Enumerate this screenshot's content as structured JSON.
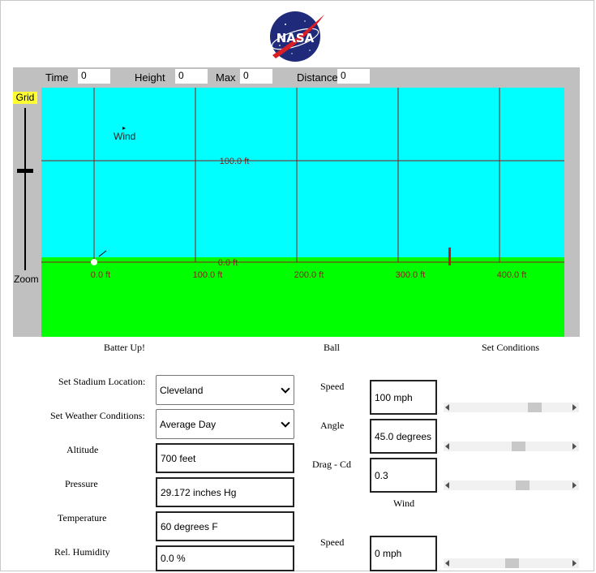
{
  "logo": {
    "text": "NASA",
    "colors": {
      "globe": "#1f2a7a",
      "swoosh": "#d81f26"
    }
  },
  "readouts": [
    {
      "label": "Time",
      "value": "0"
    },
    {
      "label": "Height",
      "value": "0"
    },
    {
      "label": "Max",
      "value": "0"
    },
    {
      "label": "Distance",
      "value": "0"
    }
  ],
  "left_controls": {
    "grid_label": "Grid",
    "zoom_label": "Zoom"
  },
  "field": {
    "colors": {
      "sky": "#00ffff",
      "grass": "#00ff00",
      "grid": "#8b1a1a",
      "label": "#8b1a1a",
      "marker": "#cc1111",
      "ball": "#ffffff"
    },
    "wind_label": "Wind",
    "height_labels": [
      "100.0 ft",
      "0.0 ft"
    ],
    "distance_labels": [
      "0.0 ft",
      "100.0 ft",
      "200.0 ft",
      "300.0 ft",
      "400.0 ft"
    ]
  },
  "tabs": {
    "batter": "Batter Up!",
    "ball": "Ball",
    "conditions": "Set Conditions"
  },
  "stadium": {
    "label": "Set Stadium Location:",
    "value": "Cleveland"
  },
  "weather": {
    "label": "Set Weather Conditions:",
    "value": "Average Day"
  },
  "inputs": [
    {
      "label": "Altitude",
      "value": "700 feet"
    },
    {
      "label": "Pressure",
      "value": "29.172 inches Hg"
    },
    {
      "label": "Temperature",
      "value": "60 degrees F"
    },
    {
      "label": "Rel. Humidity",
      "value": "0.0 %"
    }
  ],
  "ball_controls": [
    {
      "label": "Speed",
      "value": "100 mph",
      "slider": 0.73
    },
    {
      "label": "Angle",
      "value": "45.0 degrees",
      "slider": 0.57
    },
    {
      "label": "Drag - Cd",
      "value": "0.3",
      "slider": 0.61
    }
  ],
  "wind_heading": "Wind",
  "wind_controls": [
    {
      "label": "Speed",
      "value": "0 mph",
      "slider": 0.51
    }
  ]
}
